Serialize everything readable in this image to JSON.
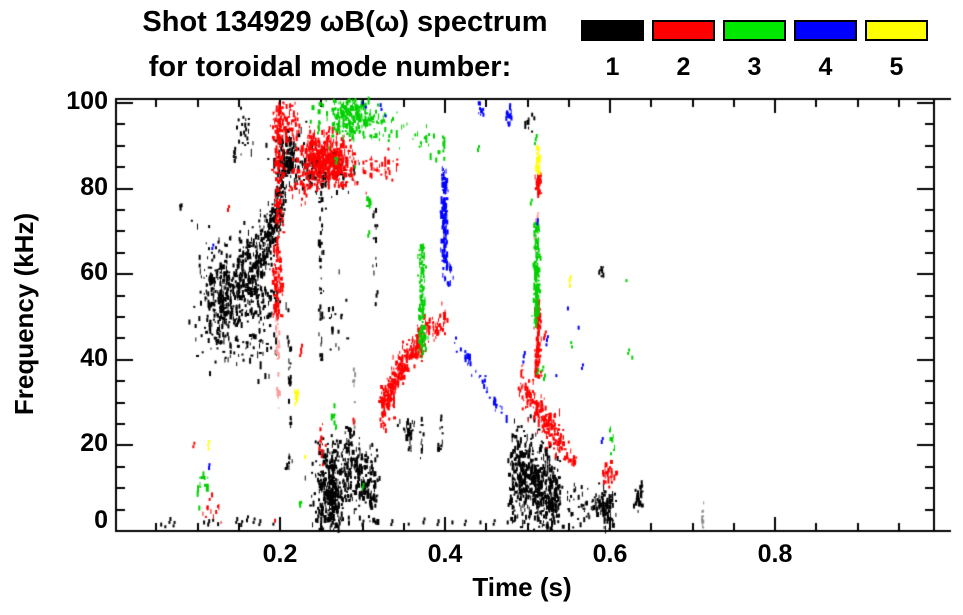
{
  "figure": {
    "title": "Shot 134929 ωB(ω) spectrum",
    "subtitle": "for toroidal mode number:",
    "background": "#ffffff",
    "frame_color": "#000000"
  },
  "legend": {
    "modes": [
      {
        "label": "1",
        "color": "#000000"
      },
      {
        "label": "2",
        "color": "#ff0000"
      },
      {
        "label": "3",
        "color": "#00e800"
      },
      {
        "label": "4",
        "color": "#0000ff"
      },
      {
        "label": "5",
        "color": "#ffff00"
      }
    ]
  },
  "chart_data": {
    "type": "scatter",
    "title": "Shot 134929 ωB(ω) spectrum for toroidal mode number: 1 2 3 4 5",
    "xlabel": "Time (s)",
    "ylabel": "Frequency (kHz)",
    "xlim": [
      0,
      0.99
    ],
    "ylim": [
      0,
      101
    ],
    "xticks": [
      {
        "v": 0.2,
        "label": "0.2"
      },
      {
        "v": 0.4,
        "label": "0.4"
      },
      {
        "v": 0.6,
        "label": "0.6"
      },
      {
        "v": 0.8,
        "label": "0.8"
      }
    ],
    "yticks": [
      {
        "v": 100,
        "label": "100"
      },
      {
        "v": 80,
        "label": "80"
      },
      {
        "v": 60,
        "label": "60"
      },
      {
        "v": 40,
        "label": "40"
      },
      {
        "v": 20,
        "label": "20"
      },
      {
        "v": 0,
        "label": "0"
      }
    ],
    "x_minor_step": 0.05,
    "y_minor_step": 5,
    "grid": false,
    "legend_position": "top",
    "series_colors": {
      "k": "#000000",
      "r": "#ff0000",
      "g": "#00d000",
      "b": "#0000ff",
      "y": "#ffff00",
      "pink": "#ff9a9a",
      "gray": "#8f8f8f"
    },
    "clusters": [
      {
        "mode": null,
        "c": "gray",
        "k": "vline",
        "t": 0.713,
        "f1": 0.5,
        "f2": 8,
        "n": 9,
        "jt": 0.0008
      },
      {
        "mode": null,
        "c": "gray",
        "k": "vline",
        "t": 0.29,
        "f1": 23,
        "f2": 44,
        "n": 8,
        "jt": 0.0008
      },
      {
        "mode": 1,
        "c": "k",
        "k": "blob",
        "t": 0.13,
        "f": 55,
        "st": 0.012,
        "sf": 5.5,
        "n": 320
      },
      {
        "mode": 1,
        "c": "k",
        "k": "band",
        "t1": 0.148,
        "f1": 58,
        "t2": 0.186,
        "f2": 66,
        "s": 4.5,
        "n": 260
      },
      {
        "mode": 1,
        "c": "k",
        "k": "blob",
        "t": 0.178,
        "f": 52,
        "st": 0.01,
        "sf": 4,
        "n": 80
      },
      {
        "mode": 1,
        "c": "k",
        "k": "band",
        "t1": 0.186,
        "f1": 68,
        "t2": 0.204,
        "f2": 79,
        "s": 3.5,
        "n": 150
      },
      {
        "mode": 1,
        "c": "k",
        "k": "blob",
        "t": 0.158,
        "f": 44,
        "st": 0.022,
        "sf": 4,
        "n": 60
      },
      {
        "mode": 1,
        "c": "k",
        "k": "blob",
        "t": 0.209,
        "f": 86.5,
        "st": 0.008,
        "sf": 3.2,
        "n": 150
      },
      {
        "mode": 1,
        "c": "k",
        "k": "blob",
        "t": 0.243,
        "f": 84.5,
        "st": 0.011,
        "sf": 2.8,
        "n": 100
      },
      {
        "mode": 1,
        "c": "k",
        "k": "blob",
        "t": 0.272,
        "f": 84,
        "st": 0.012,
        "sf": 2.5,
        "n": 40
      },
      {
        "mode": 1,
        "c": "k",
        "k": "vline",
        "t": 0.25,
        "f1": 40,
        "f2": 78,
        "n": 36
      },
      {
        "mode": 1,
        "c": "k",
        "k": "blob",
        "t": 0.268,
        "f": 49,
        "st": 0.007,
        "sf": 4,
        "n": 20
      },
      {
        "mode": 1,
        "c": "k",
        "k": "blob",
        "t": 0.155,
        "f": 93.5,
        "st": 0.006,
        "sf": 3.5,
        "n": 24
      },
      {
        "mode": 1,
        "c": "k",
        "k": "dots",
        "pts": [
          [
            0.144,
            87.5
          ],
          [
            0.1445,
            88.5
          ],
          [
            0.145,
            86.5
          ],
          [
            0.079,
            76
          ],
          [
            0.0795,
            75.3
          ],
          [
            0.316,
            53
          ],
          [
            0.317,
            55
          ]
        ]
      },
      {
        "mode": 1,
        "c": "k",
        "k": "vline",
        "t": 0.59,
        "f1": 59.5,
        "f2": 62.5,
        "n": 8
      },
      {
        "mode": 1,
        "c": "k",
        "k": "vline",
        "t": 0.212,
        "f1": 23,
        "f2": 46,
        "n": 20
      },
      {
        "mode": 1,
        "c": "k",
        "k": "blob",
        "t": 0.211,
        "f": 15,
        "st": 0.003,
        "sf": 1.5,
        "n": 8
      },
      {
        "mode": 1,
        "c": "k",
        "k": "vline",
        "t": 0.315,
        "f1": 60,
        "f2": 75,
        "n": 12
      },
      {
        "mode": 1,
        "c": "k",
        "k": "blob",
        "t": 0.262,
        "f": 8.5,
        "st": 0.01,
        "sf": 5,
        "n": 330
      },
      {
        "mode": 1,
        "c": "k",
        "k": "blob",
        "t": 0.263,
        "f": 16.5,
        "st": 0.009,
        "sf": 3,
        "n": 70
      },
      {
        "mode": 1,
        "c": "k",
        "k": "band",
        "t1": 0.28,
        "f1": 13,
        "t2": 0.318,
        "f2": 10,
        "s": 4,
        "n": 190
      },
      {
        "mode": 1,
        "c": "k",
        "k": "blob",
        "t": 0.285,
        "f": 20.5,
        "st": 0.006,
        "sf": 1.8,
        "n": 26
      },
      {
        "mode": 1,
        "c": "k",
        "k": "blob",
        "t": 0.356,
        "f": 24.5,
        "st": 0.007,
        "sf": 1.4,
        "n": 18
      },
      {
        "mode": 1,
        "c": "k",
        "k": "vline",
        "t": 0.358,
        "f1": 16,
        "f2": 26,
        "n": 8
      },
      {
        "mode": 1,
        "c": "k",
        "k": "vline",
        "t": 0.372,
        "f1": 17,
        "f2": 27,
        "n": 10
      },
      {
        "mode": 1,
        "c": "k",
        "k": "vline",
        "t": 0.395,
        "f1": 19,
        "f2": 27,
        "n": 12
      },
      {
        "mode": 1,
        "c": "k",
        "k": "dots",
        "pts": [
          [
            0.056,
            1.5
          ],
          [
            0.061,
            1
          ],
          [
            0.066,
            2
          ],
          [
            0.071,
            1.2
          ],
          [
            0.108,
            2
          ],
          [
            0.113,
            1.5
          ],
          [
            0.119,
            2.5
          ],
          [
            0.125,
            1.6
          ],
          [
            0.147,
            2
          ],
          [
            0.153,
            1.4
          ],
          [
            0.16,
            2.5
          ],
          [
            0.168,
            2
          ],
          [
            0.175,
            1.5
          ],
          [
            0.192,
            1.6
          ],
          [
            0.3,
            1.5
          ],
          [
            0.316,
            2
          ],
          [
            0.335,
            1.5
          ],
          [
            0.356,
            1.6
          ],
          [
            0.374,
            2
          ],
          [
            0.391,
            1.5
          ],
          [
            0.409,
            2
          ],
          [
            0.424,
            1.5
          ],
          [
            0.443,
            2
          ],
          [
            0.459,
            1.6
          ],
          [
            0.476,
            2
          ]
        ]
      },
      {
        "mode": 1,
        "c": "k",
        "k": "band",
        "t1": 0.482,
        "f1": 12,
        "t2": 0.541,
        "f2": 8,
        "s": 6,
        "n": 320
      },
      {
        "mode": 1,
        "c": "k",
        "k": "blob",
        "t": 0.493,
        "f": 15,
        "st": 0.006,
        "sf": 4.5,
        "n": 100
      },
      {
        "mode": 1,
        "c": "k",
        "k": "blob",
        "t": 0.514,
        "f": 10,
        "st": 0.006,
        "sf": 4,
        "n": 100
      },
      {
        "mode": 1,
        "c": "k",
        "k": "blob",
        "t": 0.53,
        "f": 7,
        "st": 0.005,
        "sf": 3,
        "n": 60
      },
      {
        "mode": 1,
        "c": "k",
        "k": "vline",
        "t": 0.481,
        "f1": 2,
        "f2": 26,
        "n": 26
      },
      {
        "mode": 1,
        "c": "k",
        "k": "band",
        "t1": 0.547,
        "f1": 6.5,
        "t2": 0.588,
        "f2": 6,
        "s": 2.2,
        "n": 50
      },
      {
        "mode": 1,
        "c": "k",
        "k": "blob",
        "t": 0.596,
        "f": 5.5,
        "st": 0.0045,
        "sf": 2.6,
        "n": 80
      },
      {
        "mode": 1,
        "c": "k",
        "k": "vline",
        "t": 0.632,
        "f1": 5,
        "f2": 10,
        "n": 10
      },
      {
        "mode": 1,
        "c": "k",
        "k": "vline",
        "t": 0.636,
        "f1": 4,
        "f2": 11,
        "n": 14
      },
      {
        "mode": 1,
        "c": "k",
        "k": "blob",
        "t": 0.503,
        "f": 94.5,
        "st": 0.004,
        "sf": 1.8,
        "n": 8
      },
      {
        "mode": 2,
        "c": "pink",
        "k": "vline",
        "t": 0.1975,
        "f1": 27,
        "f2": 50,
        "n": 26,
        "jt": 0.0012
      },
      {
        "mode": 2,
        "c": "pink",
        "k": "vline",
        "t": 0.511,
        "f1": 55,
        "f2": 77,
        "n": 12,
        "jt": 0.001
      },
      {
        "mode": 2,
        "c": "r",
        "k": "vline",
        "t": 0.1975,
        "f1": 50,
        "f2": 100,
        "n": 230,
        "jt": 0.0028
      },
      {
        "mode": 2,
        "c": "r",
        "k": "blob",
        "t": 0.262,
        "f": 86.5,
        "st": 0.014,
        "sf": 3.0,
        "n": 360
      },
      {
        "mode": 2,
        "c": "r",
        "k": "blob",
        "t": 0.24,
        "f": 88,
        "st": 0.009,
        "sf": 2.8,
        "n": 120
      },
      {
        "mode": 2,
        "c": "r",
        "k": "blob",
        "t": 0.209,
        "f": 94.5,
        "st": 0.009,
        "sf": 3.2,
        "n": 70
      },
      {
        "mode": 2,
        "c": "r",
        "k": "blob",
        "t": 0.228,
        "f": 81,
        "st": 0.008,
        "sf": 2.5,
        "n": 40
      },
      {
        "mode": 2,
        "c": "r",
        "k": "band",
        "t1": 0.3,
        "f1": 85.2,
        "t2": 0.342,
        "f2": 84.5,
        "s": 1.6,
        "n": 36
      },
      {
        "mode": 2,
        "c": "r",
        "k": "band",
        "t1": 0.323,
        "f1": 28,
        "t2": 0.352,
        "f2": 40,
        "s": 2.2,
        "n": 180
      },
      {
        "mode": 2,
        "c": "r",
        "k": "band",
        "t1": 0.352,
        "f1": 40,
        "t2": 0.376,
        "f2": 46,
        "s": 2.0,
        "n": 100
      },
      {
        "mode": 2,
        "c": "r",
        "k": "band",
        "t1": 0.376,
        "f1": 46.5,
        "t2": 0.401,
        "f2": 48.5,
        "s": 1.7,
        "n": 50
      },
      {
        "mode": 2,
        "c": "r",
        "k": "vline",
        "t": 0.514,
        "f1": 78.5,
        "f2": 83.5,
        "n": 36
      },
      {
        "mode": 2,
        "c": "r",
        "k": "vline",
        "t": 0.5125,
        "f1": 36,
        "f2": 54,
        "n": 130
      },
      {
        "mode": 2,
        "c": "r",
        "k": "band",
        "t1": 0.49,
        "f1": 36,
        "t2": 0.5455,
        "f2": 18.5,
        "s": 2.4,
        "n": 180
      },
      {
        "mode": 2,
        "c": "r",
        "k": "band",
        "t1": 0.546,
        "f1": 18.3,
        "t2": 0.559,
        "f2": 16,
        "s": 1.0,
        "n": 18
      },
      {
        "mode": 2,
        "c": "r",
        "k": "blob",
        "t": 0.5985,
        "f": 13.5,
        "st": 0.004,
        "sf": 1.3,
        "n": 28
      },
      {
        "mode": 2,
        "c": "r",
        "k": "vline",
        "t": 0.2505,
        "f1": 17,
        "f2": 25.5,
        "n": 14
      },
      {
        "mode": 2,
        "c": "r",
        "k": "blob",
        "t": 0.117,
        "f": 5.5,
        "st": 0.006,
        "sf": 1.5,
        "n": 12
      },
      {
        "mode": 2,
        "c": "r",
        "k": "dots",
        "pts": [
          [
            0.137,
            75
          ],
          [
            0.2245,
            41
          ],
          [
            0.2255,
            42.5
          ],
          [
            0.289,
            26
          ],
          [
            0.2895,
            25.2
          ],
          [
            0.324,
            27.5
          ],
          [
            0.52,
            45
          ],
          [
            0.521,
            45.7
          ],
          [
            0.095,
            19.7
          ],
          [
            0.194,
            2.4
          ],
          [
            0.2555,
            20
          ],
          [
            0.252,
            15.5
          ]
        ]
      },
      {
        "mode": 3,
        "c": "g",
        "k": "blob",
        "t": 0.285,
        "f": 97,
        "st": 0.013,
        "sf": 2.6,
        "n": 230
      },
      {
        "mode": 3,
        "c": "g",
        "k": "blob",
        "t": 0.318,
        "f": 95.5,
        "st": 0.01,
        "sf": 2.4,
        "n": 36
      },
      {
        "mode": 3,
        "c": "g",
        "k": "band",
        "t1": 0.335,
        "f1": 93,
        "t2": 0.4,
        "f2": 90.5,
        "s": 2.0,
        "n": 24
      },
      {
        "mode": 3,
        "c": "g",
        "k": "vline",
        "t": 0.306,
        "f1": 72,
        "f2": 79,
        "n": 8
      },
      {
        "mode": 3,
        "c": "g",
        "k": "vline",
        "t": 0.372,
        "f1": 42,
        "f2": 67,
        "n": 110,
        "jt": 0.0022
      },
      {
        "mode": 3,
        "c": "g",
        "k": "blob",
        "t": 0.374,
        "f": 44,
        "st": 0.003,
        "sf": 1.5,
        "n": 14
      },
      {
        "mode": 3,
        "c": "g",
        "k": "vline",
        "t": 0.5115,
        "f1": 48,
        "f2": 72,
        "n": 140
      },
      {
        "mode": 3,
        "c": "g",
        "k": "vline",
        "t": 0.2665,
        "f1": 23.5,
        "f2": 29.5,
        "n": 10
      },
      {
        "mode": 3,
        "c": "g",
        "k": "vline",
        "t": 0.602,
        "f1": 17.5,
        "f2": 24,
        "n": 8
      },
      {
        "mode": 3,
        "c": "g",
        "k": "blob",
        "t": 0.106,
        "f": 10.5,
        "st": 0.005,
        "sf": 2.5,
        "n": 12
      },
      {
        "mode": 3,
        "c": "g",
        "k": "dots",
        "pts": [
          [
            0.398,
            88.8
          ],
          [
            0.44,
            89
          ],
          [
            0.267,
            87
          ],
          [
            0.268,
            86
          ],
          [
            0.291,
            85
          ],
          [
            0.247,
            94.5
          ],
          [
            0.2475,
            95.5
          ],
          [
            0.246,
            93
          ],
          [
            0.504,
            76.5
          ],
          [
            0.509,
            90.5
          ],
          [
            0.51,
            91.5
          ],
          [
            0.512,
            36.8
          ],
          [
            0.518,
            37.5
          ],
          [
            0.52,
            35.5
          ],
          [
            0.553,
            44
          ],
          [
            0.554,
            43
          ],
          [
            0.62,
            58.5
          ],
          [
            0.622,
            41.5
          ],
          [
            0.627,
            40.5
          ],
          [
            0.224,
            6.5
          ],
          [
            0.2245,
            5.9
          ],
          [
            0.3,
            10
          ],
          [
            0.307,
            69
          ]
        ]
      },
      {
        "mode": 4,
        "c": "b",
        "k": "vline",
        "t": 0.4,
        "f1": 62,
        "f2": 85,
        "n": 120,
        "jt": 0.0022
      },
      {
        "mode": 4,
        "c": "b",
        "k": "blob",
        "t": 0.403,
        "f": 61,
        "st": 0.0035,
        "sf": 1.5,
        "n": 16
      },
      {
        "mode": 4,
        "c": "b",
        "k": "vline",
        "t": 0.4785,
        "f1": 95,
        "f2": 99.5,
        "n": 14
      },
      {
        "mode": 4,
        "c": "b",
        "k": "vline",
        "t": 0.4435,
        "f1": 97,
        "f2": 100,
        "n": 9
      },
      {
        "mode": 4,
        "c": "b",
        "k": "band",
        "t1": 0.412,
        "f1": 44,
        "t2": 0.472,
        "f2": 27.5,
        "s": 0.8,
        "n": 36
      },
      {
        "mode": 4,
        "c": "b",
        "k": "dots",
        "pts": [
          [
            0.3,
            100
          ],
          [
            0.304,
            99
          ],
          [
            0.322,
            99.5
          ],
          [
            0.323,
            98.5
          ],
          [
            0.328,
            97
          ],
          [
            0.495,
            39.5
          ],
          [
            0.4955,
            40.8
          ],
          [
            0.523,
            43.5
          ],
          [
            0.5235,
            44.6
          ],
          [
            0.535,
            36.3
          ],
          [
            0.549,
            52
          ],
          [
            0.562,
            47.5
          ],
          [
            0.566,
            38
          ],
          [
            0.114,
            14.7
          ],
          [
            0.1145,
            15.5
          ],
          [
            0.118,
            66
          ],
          [
            0.59,
            20.8
          ],
          [
            0.512,
            71.8
          ],
          [
            0.5125,
            72.6
          ]
        ]
      },
      {
        "mode": 5,
        "c": "y",
        "k": "vline",
        "t": 0.2195,
        "f1": 29.5,
        "f2": 35,
        "n": 12,
        "jt": 0.0012
      },
      {
        "mode": 5,
        "c": "y",
        "k": "vline",
        "t": 0.513,
        "f1": 83.5,
        "f2": 90,
        "n": 26,
        "jt": 0.0015
      },
      {
        "mode": 5,
        "c": "y",
        "k": "dots",
        "pts": [
          [
            0.551,
            58.5
          ],
          [
            0.5515,
            57.3
          ],
          [
            0.2305,
            17.3
          ],
          [
            0.113,
            20.1
          ],
          [
            0.1135,
            19.2
          ]
        ]
      }
    ]
  }
}
